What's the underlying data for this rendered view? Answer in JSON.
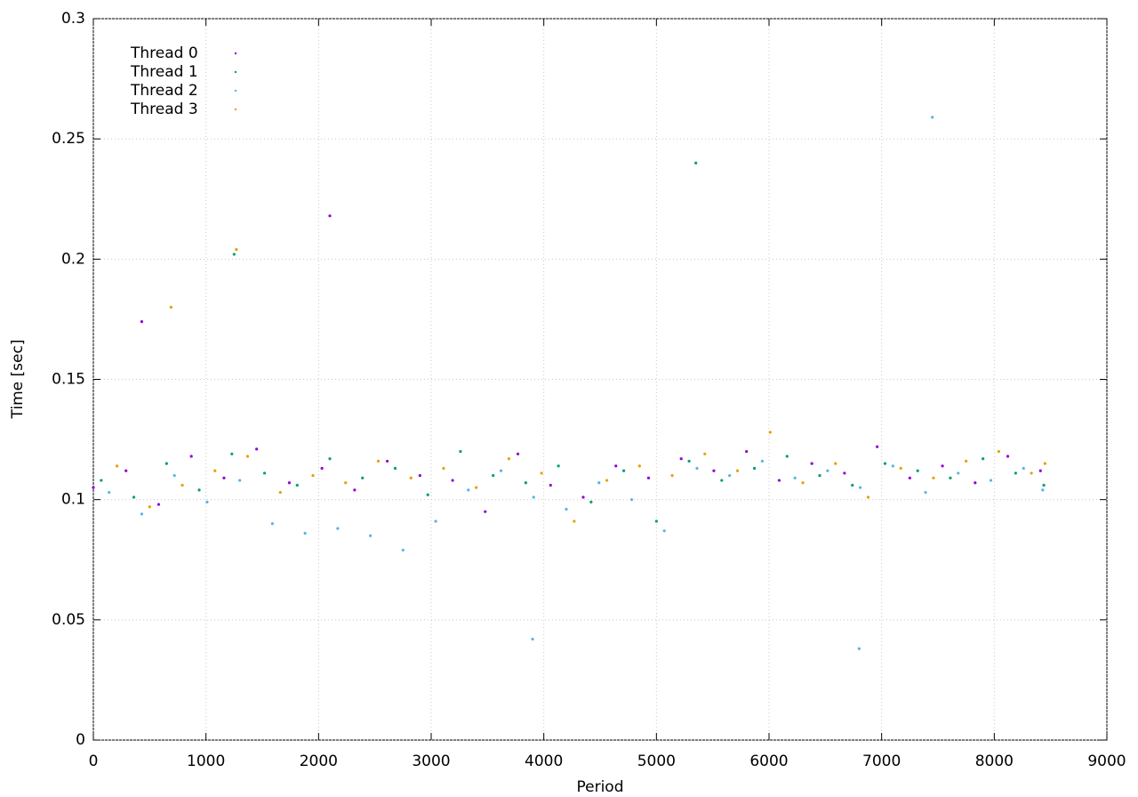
{
  "chart_data": {
    "type": "scatter",
    "xlabel": "Period",
    "ylabel": "Time [sec]",
    "xlim": [
      0,
      9000
    ],
    "xticks": [
      0,
      1000,
      2000,
      3000,
      4000,
      5000,
      6000,
      7000,
      8000,
      9000
    ],
    "ylim": [
      0,
      0.3
    ],
    "yticks": [
      0,
      0.05,
      0.1,
      0.15,
      0.2,
      0.25,
      0.3
    ],
    "grid": true,
    "legend": "upper-left",
    "series": [
      {
        "name": "Thread 0",
        "color": "#9400d3",
        "x": [
          0,
          290,
          580,
          870,
          1160,
          1450,
          1740,
          2030,
          2320,
          2610,
          2900,
          3190,
          3480,
          3770,
          4060,
          4350,
          4640,
          4930,
          5220,
          5510,
          5800,
          6090,
          6380,
          6670,
          6960,
          7250,
          7540,
          7830,
          8120,
          8410,
          430,
          2100
        ],
        "values": [
          0.105,
          0.112,
          0.098,
          0.118,
          0.109,
          0.121,
          0.107,
          0.113,
          0.104,
          0.116,
          0.11,
          0.108,
          0.095,
          0.119,
          0.106,
          0.101,
          0.114,
          0.109,
          0.117,
          0.112,
          0.12,
          0.108,
          0.115,
          0.111,
          0.122,
          0.109,
          0.114,
          0.107,
          0.118,
          0.112,
          0.174,
          0.218
        ]
      },
      {
        "name": "Thread 1",
        "color": "#009e73",
        "x": [
          70,
          360,
          650,
          940,
          1230,
          1520,
          1810,
          2100,
          2390,
          2680,
          2970,
          3260,
          3550,
          3840,
          4130,
          4420,
          4710,
          5000,
          5290,
          5580,
          5870,
          6160,
          6450,
          6740,
          7030,
          7320,
          7610,
          7900,
          8190,
          8440,
          1250,
          5350
        ],
        "values": [
          0.108,
          0.101,
          0.115,
          0.104,
          0.119,
          0.111,
          0.106,
          0.117,
          0.109,
          0.113,
          0.102,
          0.12,
          0.11,
          0.107,
          0.114,
          0.099,
          0.112,
          0.091,
          0.116,
          0.108,
          0.113,
          0.118,
          0.11,
          0.106,
          0.115,
          0.112,
          0.109,
          0.117,
          0.111,
          0.106,
          0.202,
          0.24
        ]
      },
      {
        "name": "Thread 2",
        "color": "#56b4e9",
        "x": [
          140,
          430,
          720,
          1010,
          1300,
          1590,
          1880,
          2170,
          2460,
          2750,
          3040,
          3330,
          3620,
          3910,
          4200,
          4490,
          4780,
          5070,
          5360,
          5650,
          5940,
          6230,
          6520,
          6810,
          7100,
          7390,
          7680,
          7970,
          8260,
          8430,
          3900,
          6800,
          7450
        ],
        "values": [
          0.103,
          0.094,
          0.11,
          0.099,
          0.108,
          0.09,
          0.086,
          0.088,
          0.085,
          0.079,
          0.091,
          0.104,
          0.112,
          0.101,
          0.096,
          0.107,
          0.1,
          0.087,
          0.113,
          0.11,
          0.116,
          0.109,
          0.112,
          0.105,
          0.114,
          0.103,
          0.111,
          0.108,
          0.113,
          0.104,
          0.042,
          0.038,
          0.259
        ]
      },
      {
        "name": "Thread 3",
        "color": "#e69f00",
        "x": [
          210,
          500,
          790,
          1080,
          1370,
          1660,
          1950,
          2240,
          2530,
          2820,
          3110,
          3400,
          3690,
          3980,
          4270,
          4560,
          4850,
          5140,
          5430,
          5720,
          6010,
          6300,
          6590,
          6880,
          7170,
          7460,
          7750,
          8040,
          8330,
          8450,
          1270,
          690
        ],
        "values": [
          0.114,
          0.097,
          0.106,
          0.112,
          0.118,
          0.103,
          0.11,
          0.107,
          0.116,
          0.109,
          0.113,
          0.105,
          0.117,
          0.111,
          0.091,
          0.108,
          0.114,
          0.11,
          0.119,
          0.112,
          0.128,
          0.107,
          0.115,
          0.101,
          0.113,
          0.109,
          0.116,
          0.12,
          0.111,
          0.115,
          0.204,
          0.18
        ]
      }
    ]
  }
}
